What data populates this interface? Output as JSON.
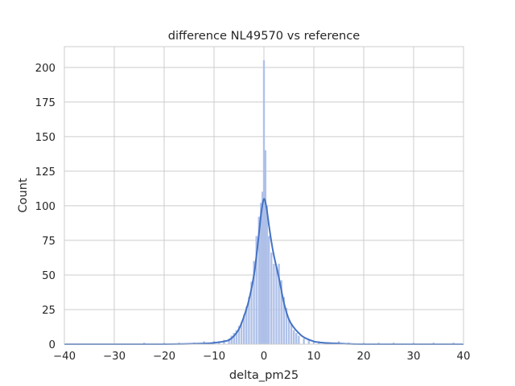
{
  "chart_data": {
    "type": "bar",
    "title": "difference NL49570 vs reference",
    "xlabel": "delta_pm25",
    "ylabel": "Count",
    "xlim": [
      -40,
      40
    ],
    "ylim": [
      0,
      215
    ],
    "x_ticks": [
      -40,
      -30,
      -20,
      -10,
      0,
      10,
      20,
      30,
      40
    ],
    "x_tick_labels": [
      "−40",
      "−30",
      "−20",
      "−10",
      "0",
      "10",
      "20",
      "30",
      "40"
    ],
    "y_ticks": [
      0,
      25,
      50,
      75,
      100,
      125,
      150,
      175,
      200
    ],
    "y_tick_labels": [
      "0",
      "25",
      "50",
      "75",
      "100",
      "125",
      "150",
      "175",
      "200"
    ],
    "grid": true,
    "bar_color": "#aec0e8",
    "line_color": "#4472c4",
    "histogram": {
      "bins": [
        {
          "x": -24,
          "count": 1
        },
        {
          "x": -20,
          "count": 1
        },
        {
          "x": -17,
          "count": 1
        },
        {
          "x": -14,
          "count": 1
        },
        {
          "x": -12,
          "count": 2
        },
        {
          "x": -10,
          "count": 2
        },
        {
          "x": -9,
          "count": 2
        },
        {
          "x": -8,
          "count": 3
        },
        {
          "x": -7,
          "count": 4
        },
        {
          "x": -6.5,
          "count": 6
        },
        {
          "x": -6,
          "count": 8
        },
        {
          "x": -5.5,
          "count": 10
        },
        {
          "x": -5,
          "count": 13
        },
        {
          "x": -4.5,
          "count": 16
        },
        {
          "x": -4,
          "count": 21
        },
        {
          "x": -3.5,
          "count": 27
        },
        {
          "x": -3,
          "count": 34
        },
        {
          "x": -2.5,
          "count": 45
        },
        {
          "x": -2,
          "count": 60
        },
        {
          "x": -1.5,
          "count": 78
        },
        {
          "x": -1,
          "count": 92
        },
        {
          "x": -0.6,
          "count": 102
        },
        {
          "x": -0.3,
          "count": 110
        },
        {
          "x": 0,
          "count": 205
        },
        {
          "x": 0.3,
          "count": 140
        },
        {
          "x": 0.6,
          "count": 100
        },
        {
          "x": 1,
          "count": 78
        },
        {
          "x": 1.5,
          "count": 66
        },
        {
          "x": 2,
          "count": 58
        },
        {
          "x": 2.5,
          "count": 56
        },
        {
          "x": 3,
          "count": 58
        },
        {
          "x": 3.5,
          "count": 46
        },
        {
          "x": 4,
          "count": 34
        },
        {
          "x": 4.5,
          "count": 26
        },
        {
          "x": 5,
          "count": 18
        },
        {
          "x": 5.5,
          "count": 14
        },
        {
          "x": 6,
          "count": 10
        },
        {
          "x": 6.5,
          "count": 8
        },
        {
          "x": 7,
          "count": 6
        },
        {
          "x": 8,
          "count": 4
        },
        {
          "x": 9,
          "count": 3
        },
        {
          "x": 10,
          "count": 2
        },
        {
          "x": 11,
          "count": 2
        },
        {
          "x": 13,
          "count": 1
        },
        {
          "x": 15,
          "count": 2
        },
        {
          "x": 17,
          "count": 1
        },
        {
          "x": 20,
          "count": 1
        },
        {
          "x": 23,
          "count": 1
        },
        {
          "x": 26,
          "count": 1
        },
        {
          "x": 30,
          "count": 1
        },
        {
          "x": 34,
          "count": 1
        },
        {
          "x": 38,
          "count": 1
        }
      ],
      "bin_width": 0.3
    },
    "kde": {
      "x": [
        -40,
        -20,
        -12,
        -10,
        -8,
        -7,
        -6,
        -5,
        -4,
        -3,
        -2,
        -1.5,
        -1,
        -0.5,
        0,
        0.5,
        1,
        1.5,
        2,
        3,
        4,
        5,
        6,
        7,
        8,
        10,
        12,
        15,
        20,
        40
      ],
      "y": [
        0,
        0,
        0.5,
        1,
        2,
        3,
        6,
        11,
        20,
        32,
        50,
        64,
        80,
        96,
        105,
        99,
        86,
        74,
        64,
        48,
        30,
        18,
        12,
        8,
        5,
        2,
        1,
        0.5,
        0,
        0
      ]
    }
  }
}
